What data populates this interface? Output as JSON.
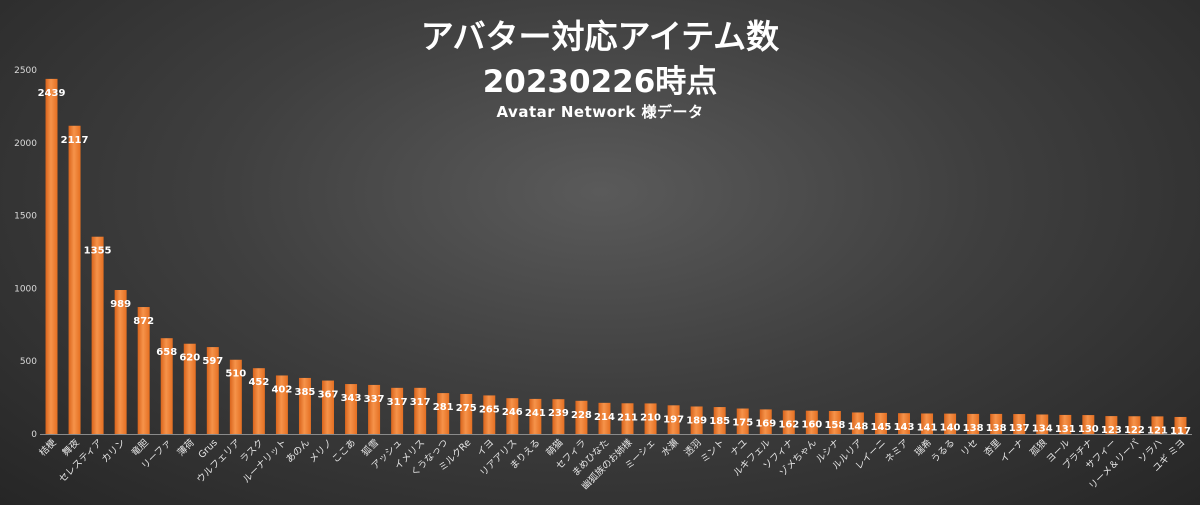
{
  "chart_data": {
    "type": "bar",
    "title": "アバター対応アイテム数",
    "subtitle": "20230226時点",
    "source_note": "Avatar Network 様データ",
    "xlabel": "",
    "ylabel": "",
    "ylim": [
      0,
      2500
    ],
    "yticks": [
      0,
      500,
      1000,
      1500,
      2000,
      2500
    ],
    "grid": false,
    "legend": "none",
    "bar_color": "#f07f2d",
    "categories": [
      "桔梗",
      "舞夜",
      "セレスティア",
      "カリン",
      "竜胆",
      "リーファ",
      "薄荷",
      "Grus",
      "ウルフェリア",
      "ラスク",
      "ルーナリット",
      "あのん",
      "メリノ",
      "ここあ",
      "狐雪",
      "アッシュ",
      "イメリス",
      "くうなっつ",
      "ミルクRe",
      "イヨ",
      "リアアリス",
      "まりえる",
      "萌猫",
      "セフィラ",
      "まめひなた",
      "幽狐族のお姉様",
      "ミーシェ",
      "水瀬",
      "透羽",
      "ミント",
      "ナユ",
      "ルキフェル",
      "ソフィナ",
      "ゾメちゃん",
      "ルシナ",
      "ルルリア",
      "レイーニ",
      "ネミア",
      "瑞希",
      "うるる",
      "リセ",
      "杏里",
      "イーナ",
      "孤狼",
      "ヨール",
      "プラチナ",
      "サフィー",
      "リーメ＆リーパ",
      "ソラハ",
      "ユギ ミヨ"
    ],
    "values": [
      2439,
      2117,
      1355,
      989,
      872,
      658,
      620,
      597,
      510,
      452,
      402,
      385,
      367,
      343,
      337,
      317,
      317,
      281,
      275,
      265,
      246,
      241,
      239,
      228,
      214,
      211,
      210,
      197,
      189,
      185,
      175,
      169,
      162,
      160,
      158,
      148,
      145,
      143,
      141,
      140,
      138,
      138,
      137,
      134,
      131,
      130,
      123,
      122,
      121,
      117
    ]
  }
}
